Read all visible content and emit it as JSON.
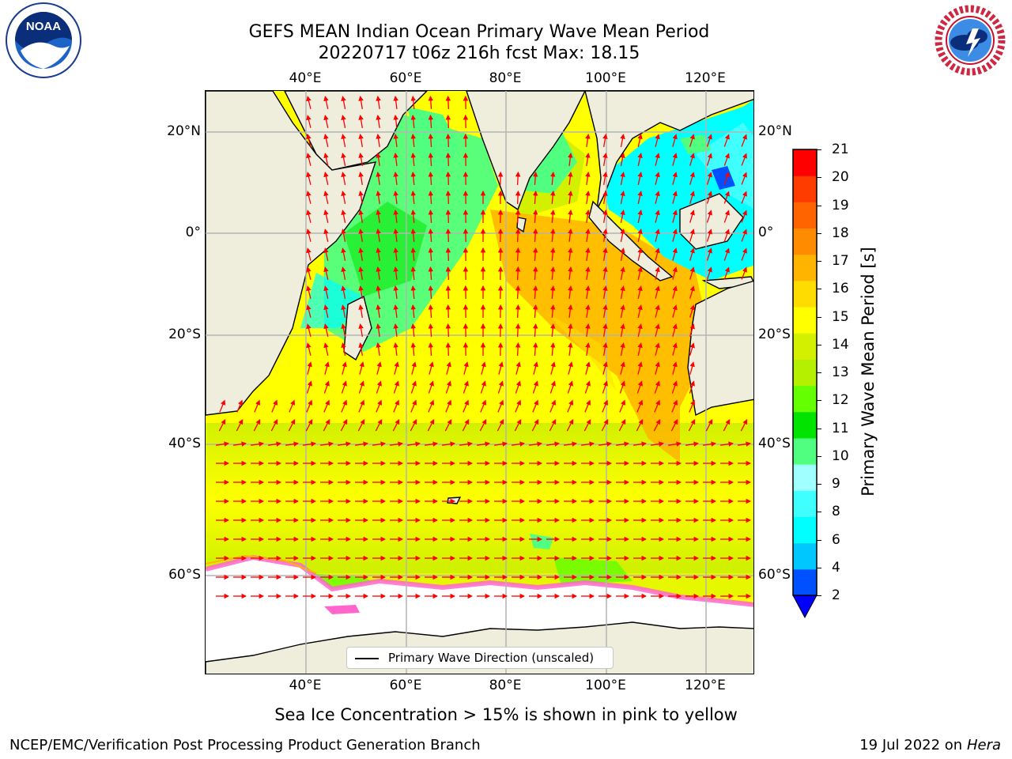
{
  "header": {
    "title_line1": "GEFS MEAN Indian Ocean Primary Wave Mean Period",
    "title_line2": "20220717 t06z 216h fcst   Max: 18.15"
  },
  "map": {
    "lon_ticks": [
      "40°E",
      "60°E",
      "80°E",
      "100°E",
      "120°E"
    ],
    "lat_ticks": [
      "20°N",
      "0°",
      "20°S",
      "40°S",
      "60°S"
    ],
    "legend_label": "Primary Wave Direction (unscaled)",
    "ocean_colors": {
      "ice": "#ffffff",
      "land": "#efeddc",
      "grid": "#b4b4b4",
      "arrow": "#ff0000"
    }
  },
  "colorbar": {
    "label": "Primary Wave Mean Period [s]",
    "ticks": [
      "2",
      "4",
      "6",
      "8",
      "9",
      "10",
      "11",
      "12",
      "13",
      "14",
      "15",
      "16",
      "17",
      "18",
      "19",
      "20",
      "21"
    ],
    "colors": [
      "#0050ff",
      "#00c8ff",
      "#00ffff",
      "#40ffff",
      "#a0ffff",
      "#50ff80",
      "#00e400",
      "#64ff00",
      "#b4f000",
      "#d2f000",
      "#ffff00",
      "#ffdc00",
      "#ffb400",
      "#ff8c00",
      "#ff6400",
      "#ff3c00",
      "#ff0000"
    ],
    "extend_color": "#0000ff"
  },
  "caption": "Sea Ice Concentration > 15% is shown in pink to yellow",
  "footer": {
    "left": "NCEP/EMC/Verification Post Processing Product Generation Branch",
    "date": "19 Jul 2022 on ",
    "machine": "Hera"
  },
  "logos": {
    "noaa_text": "NOAA",
    "nws_text": "NATIONAL WEATHER SERVICE"
  }
}
